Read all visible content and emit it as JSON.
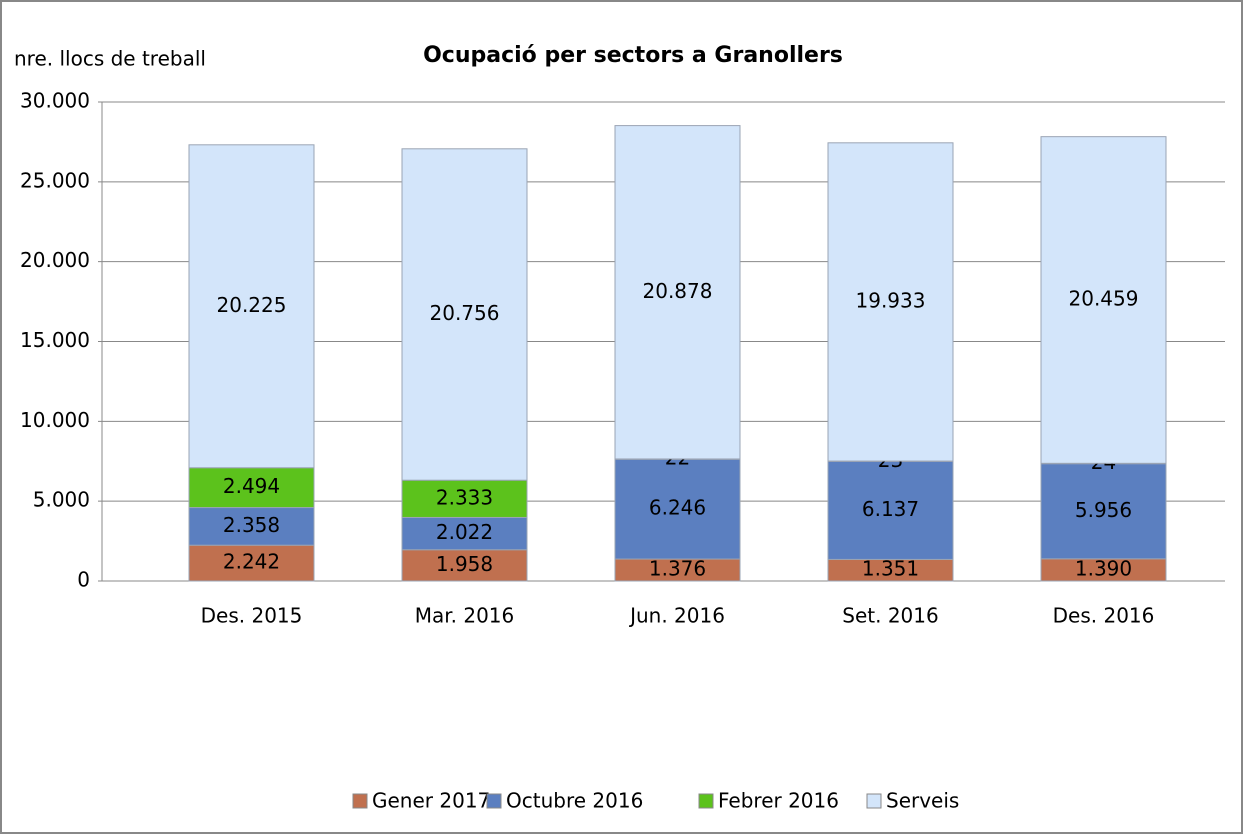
{
  "chart_data": {
    "type": "bar",
    "stacked": true,
    "title": "Ocupació per sectors a Granollers",
    "y_label": "nre. llocs de treball",
    "categories": [
      "Des. 2015",
      "Mar. 2016",
      "Jun. 2016",
      "Set. 2016",
      "Des. 2016"
    ],
    "series": [
      {
        "name": "Gener 2017",
        "color": "#c0704f",
        "values": [
          2242,
          1958,
          1376,
          1351,
          1390
        ],
        "value_labels": [
          "2.242",
          "1.958",
          "1.376",
          "1.351",
          "1.390"
        ]
      },
      {
        "name": "Octubre 2016",
        "color": "#5b7fc0",
        "values": [
          2358,
          2022,
          6246,
          6137,
          5956
        ],
        "value_labels": [
          "2.358",
          "2.022",
          "6.246",
          "6.137",
          "5.956"
        ]
      },
      {
        "name": "Febrer 2016",
        "color": "#5cc21c",
        "values": [
          2494,
          2333,
          22,
          23,
          24
        ],
        "value_labels": [
          "2.494",
          "2.333",
          "22",
          "23",
          "24"
        ]
      },
      {
        "name": "Serveis",
        "color": "#d3e5fa",
        "values": [
          20225,
          20756,
          20878,
          19933,
          20459
        ],
        "value_labels": [
          "20.225",
          "20.756",
          "20.878",
          "19.933",
          "20.459"
        ]
      }
    ],
    "ylim": [
      0,
      30000
    ],
    "yticks": [
      0,
      {
        "value": 5000,
        "label": "5.000"
      },
      {
        "value": 10000,
        "label": "10.000"
      },
      {
        "value": 15000,
        "label": "15.000"
      },
      {
        "value": 20000,
        "label": "20.000"
      },
      {
        "value": 25000,
        "label": "25.000"
      },
      {
        "value": 30000,
        "label": "30.000"
      }
    ],
    "grid": true,
    "legend": "bottom"
  }
}
